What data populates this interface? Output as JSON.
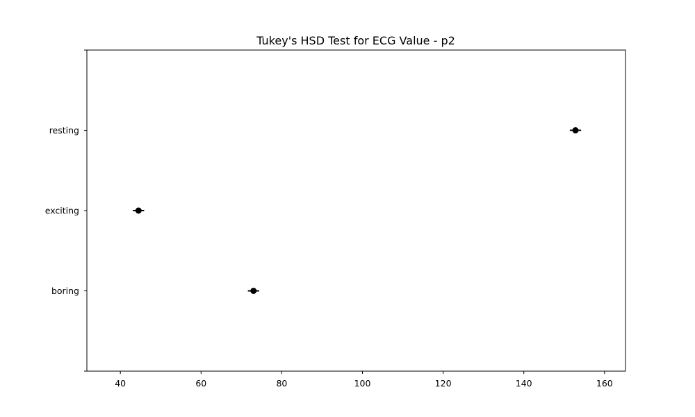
{
  "chart_data": {
    "type": "scatter",
    "title": "Tukey's HSD Test for ECG Value - p2",
    "xlabel": "",
    "ylabel": "",
    "xlim": [
      31.7,
      165.2
    ],
    "x_ticks": [
      40,
      60,
      80,
      100,
      120,
      140,
      160
    ],
    "x_tick_labels": [
      "40",
      "60",
      "80",
      "100",
      "120",
      "140",
      "160"
    ],
    "categories": [
      "boring",
      "exciting",
      "resting"
    ],
    "points": [
      {
        "category": "boring",
        "mean": 73.0,
        "lower": 71.6,
        "upper": 74.4
      },
      {
        "category": "exciting",
        "mean": 44.5,
        "lower": 43.1,
        "upper": 45.9
      },
      {
        "category": "resting",
        "mean": 152.8,
        "lower": 151.4,
        "upper": 154.2
      }
    ],
    "colors": {
      "marker": "#000000",
      "axis": "#000000",
      "background": "#ffffff"
    },
    "grid": false
  }
}
